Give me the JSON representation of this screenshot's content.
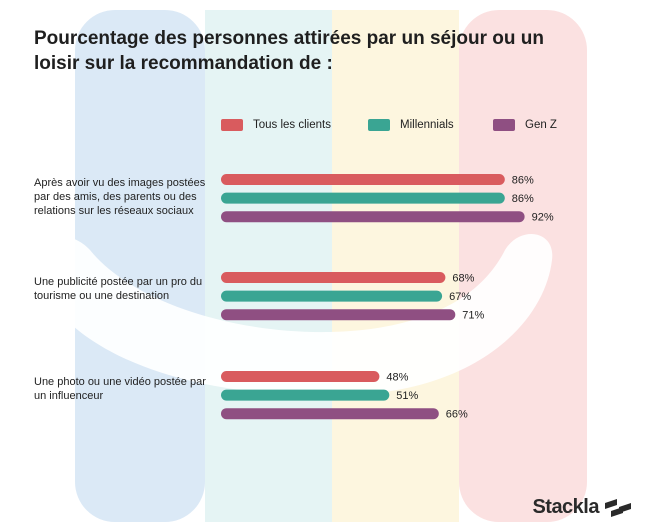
{
  "title": "Pourcentage des personnes attirées par un séjour ou un loisir sur la recommandation de :",
  "brand": "Stackla",
  "colors": {
    "tous": "#d95b5e",
    "millennials": "#3aa593",
    "genz": "#8f4f82",
    "background_stripes": [
      "#dbe9f6",
      "#e5f4f4",
      "#fdf6df",
      "#fbe1e1"
    ]
  },
  "chart_data": {
    "type": "bar",
    "orientation": "horizontal",
    "title": "Pourcentage des personnes attirées par un séjour ou un loisir sur la recommandation de :",
    "categories": [
      "Après avoir vu des images postées par des amis, des parents ou des relations sur les réseaux sociaux",
      "Une publicité postée par un pro du tourisme ou une destination",
      "Une photo ou une vidéo postée par un influenceur"
    ],
    "series": [
      {
        "name": "Tous les clients",
        "values": [
          86,
          68,
          48
        ]
      },
      {
        "name": "Millennials",
        "values": [
          86,
          67,
          51
        ]
      },
      {
        "name": "Gen Z",
        "values": [
          92,
          71,
          66
        ]
      }
    ],
    "value_labels": [
      [
        "86%",
        "68%",
        "48%"
      ],
      [
        "86%",
        "67%",
        "51%"
      ],
      [
        "92%",
        "71%",
        "66%"
      ]
    ],
    "xlim": [
      0,
      100
    ],
    "legend_position": "top",
    "grid": false
  }
}
